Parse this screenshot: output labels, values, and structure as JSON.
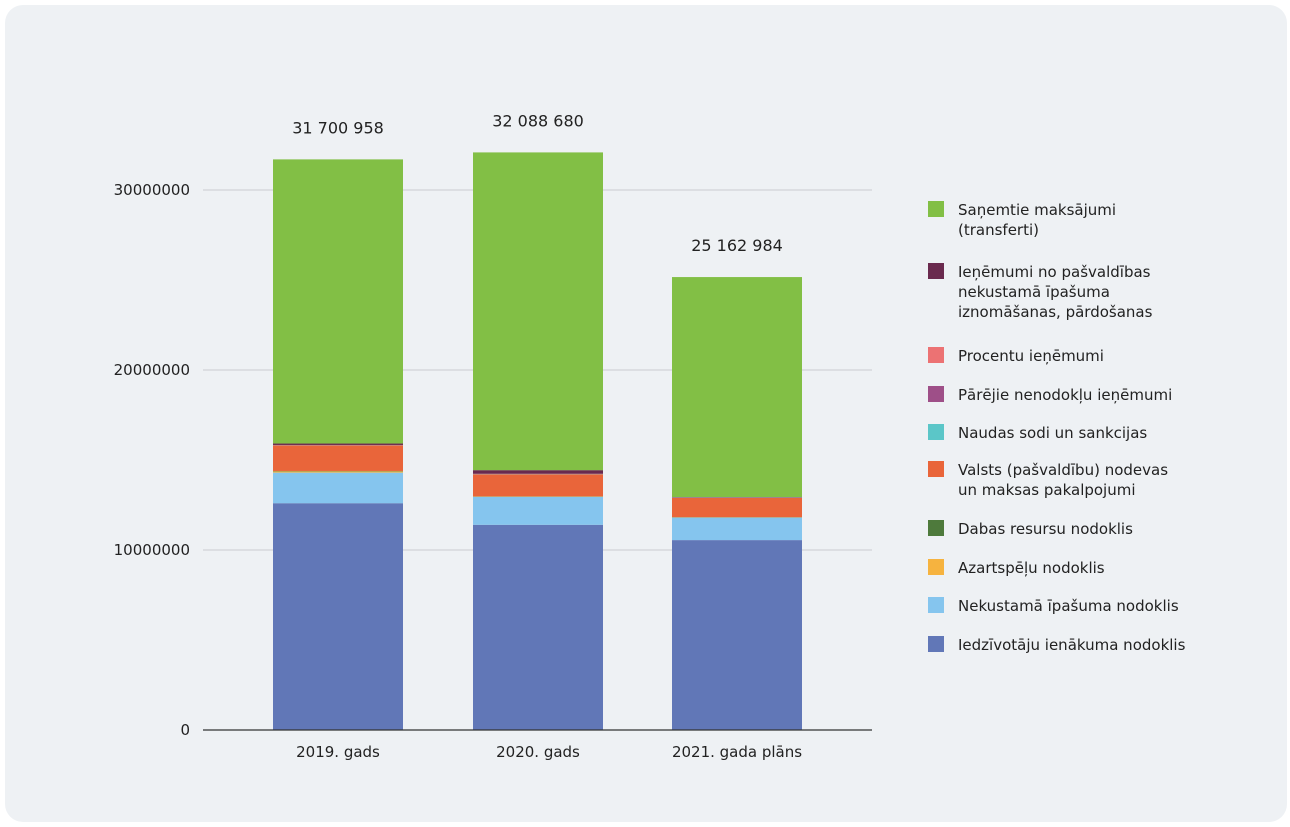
{
  "chart_data": {
    "type": "bar",
    "stacked": true,
    "categories": [
      "2019. gads",
      "2020. gads",
      "2021. gada plāns"
    ],
    "totals": [
      31700958,
      32088680,
      25162984
    ],
    "total_labels": [
      "31 700 958",
      "32 088 680",
      "25 162 984"
    ],
    "ylim": [
      0,
      35000000
    ],
    "yticks": [
      0,
      10000000,
      20000000,
      30000000
    ],
    "ytick_labels": [
      "0",
      "10000000",
      "20000000",
      "30000000"
    ],
    "grid": true,
    "legend_position": "right",
    "series": [
      {
        "name": "Iedzīvotāju ienākuma nodoklis",
        "color": "#6177b7",
        "values": [
          12600000,
          11400000,
          10550000
        ]
      },
      {
        "name": "Nekustamā īpašuma nodoklis",
        "color": "#85c5ee",
        "values": [
          1700000,
          1550000,
          1250000
        ]
      },
      {
        "name": "Azartspēļu nodoklis",
        "color": "#f6b33f",
        "values": [
          70000,
          15000,
          10000
        ]
      },
      {
        "name": "Dabas resursu nodoklis",
        "color": "#4e7a3c",
        "values": [
          20000,
          15000,
          15000
        ]
      },
      {
        "name": "Valsts (pašvaldību) nodevas un maksas pakalpojumi",
        "color": "#e9653a",
        "values": [
          1420000,
          1230000,
          1070000
        ]
      },
      {
        "name": "Naudas sodi un sankcijas",
        "color": "#5bc6c8",
        "values": [
          10000,
          10000,
          10000
        ]
      },
      {
        "name": "Pārējie nenodokļu ieņēmumi",
        "color": "#9e4f88",
        "values": [
          10000,
          10000,
          10000
        ]
      },
      {
        "name": "Procentu ieņēmumi",
        "color": "#ec7273",
        "values": [
          5000,
          5000,
          5000
        ]
      },
      {
        "name": "Ieņēmumi no pašvaldības nekustamā īpašuma iznomāšanas, pārdošanas",
        "color": "#6a2a4e",
        "values": [
          80000,
          200000,
          20000
        ]
      },
      {
        "name": "Saņemtie maksājumi (transferti)",
        "color": "#82bf45",
        "values": [
          15785958,
          17653680,
          12222984
        ]
      }
    ]
  },
  "legend": {
    "labels": [
      "Saņemtie maksājumi\n(transferti)",
      "Ieņēmumi no pašvaldības\nnekustamā īpašuma\niznomāšanas, pārdošanas",
      "Procentu ieņēmumi",
      "Pārējie nenodokļu ieņēmumi",
      "Naudas sodi un sankcijas",
      "Valsts (pašvaldību) nodevas\nun maksas pakalpojumi",
      "Dabas resursu nodoklis",
      "Azartspēļu nodoklis",
      "Nekustamā īpašuma nodoklis",
      "Iedzīvotāju ienākuma nodoklis"
    ],
    "colors": [
      "#82bf45",
      "#6a2a4e",
      "#ec7273",
      "#9e4f88",
      "#5bc6c8",
      "#e9653a",
      "#4e7a3c",
      "#f6b33f",
      "#85c5ee",
      "#6177b7"
    ]
  }
}
